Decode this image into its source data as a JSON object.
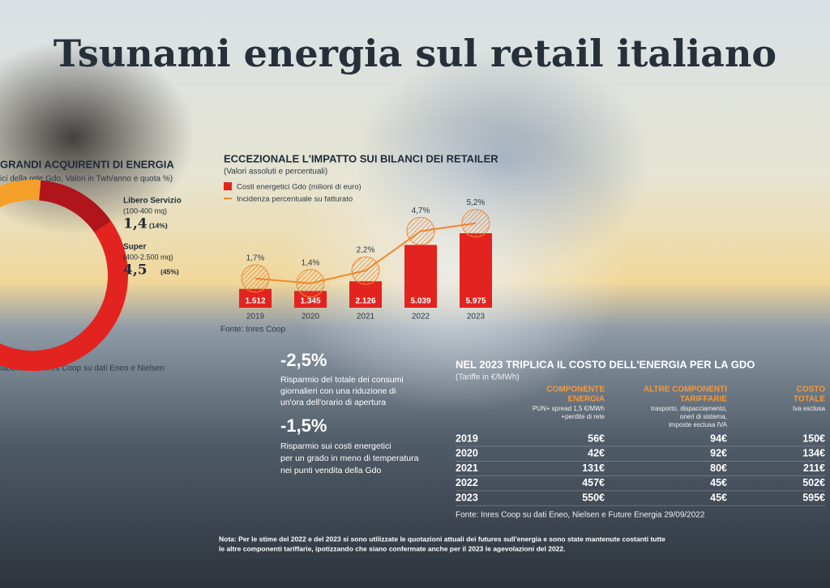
{
  "title": "Tsunami energia sul retail italiano",
  "chart_data": [
    {
      "type": "pie",
      "title": "GRANDI ACQUIRENTI DI ENERGIA",
      "subtitle": "ici della rete Gdo, Valori in Twh/anno e quota %)",
      "categories": [
        "Libero Servizio",
        "Super",
        null
      ],
      "sublabels": [
        "(100-400 mq)",
        "(400-2.500 mq)",
        null
      ],
      "twh": [
        1.4,
        4.5,
        null
      ],
      "twh_labels": [
        "1,4",
        "4,5",
        null
      ],
      "values": [
        14,
        45,
        41
      ],
      "value_labels": [
        "(14%)",
        "(45%)",
        null
      ],
      "colors": [
        "#b0151c",
        "#e3231f",
        "#f4a02a"
      ],
      "source": "laborazioni Inres Coop su dati Eneo e Nielsen"
    },
    {
      "type": "bar",
      "title": "ECCEZIONALE L'IMPATTO SUI BILANCI DEI RETAILER",
      "subtitle": "(Valori assoluti e percentuali)",
      "categories": [
        "2019",
        "2020",
        "2021",
        "2022",
        "2023"
      ],
      "series": [
        {
          "name": "Costi energetici Gdo (milioni di euro)",
          "color": "#e3231f",
          "values": [
            1512,
            1345,
            2126,
            5039,
            5975
          ],
          "value_labels": [
            "1.512",
            "1.345",
            "2.126",
            "5.039",
            "5.975"
          ]
        },
        {
          "name": "Incidenza percentuale su fatturato",
          "type": "line",
          "color": "#f0882e",
          "values": [
            1.7,
            1.4,
            2.2,
            4.7,
            5.2
          ],
          "value_labels": [
            "1,7%",
            "1,4%",
            "2,2%",
            "4,7%",
            "5,2%"
          ]
        }
      ],
      "source": "Fonte: Inres Coop"
    }
  ],
  "stats": [
    {
      "value": "-2,5%",
      "lines": [
        "Risparmio del totale dei consumi",
        "giornalieri con una riduzione di",
        "un'ora dell'orario di apertura"
      ]
    },
    {
      "value": "-1,5%",
      "lines": [
        "Risparmio sui costi energetici",
        "per un grado in meno di temperatura",
        "nei punti vendita della Gdo"
      ]
    }
  ],
  "table": {
    "title": "NEL 2023 TRIPLICA IL COSTO DELL'ENERGIA PER LA GDO",
    "subtitle": "(Tariffe in €/MWh)",
    "columns": [
      {
        "label": [
          "COMPONENTE",
          "ENERGIA"
        ],
        "note": [
          "PUN+ spread 1,5 €/MWh",
          "+perdite di rete"
        ]
      },
      {
        "label": [
          "ALTRE COMPONENTI",
          "TARIFFARIE"
        ],
        "note": [
          "trasporto, dispacciamento,",
          "oneri di sistema,",
          "imposte esclusa IVA"
        ]
      },
      {
        "label": [
          "COSTO",
          "TOTALE"
        ],
        "note": [
          "Iva esclusa"
        ]
      }
    ],
    "rows": [
      [
        "2019",
        "56€",
        "94€",
        "150€"
      ],
      [
        "2020",
        "42€",
        "92€",
        "134€"
      ],
      [
        "2021",
        "131€",
        "80€",
        "211€"
      ],
      [
        "2022",
        "457€",
        "45€",
        "502€"
      ],
      [
        "2023",
        "550€",
        "45€",
        "595€"
      ]
    ],
    "source": "Fonte: Inres Coop su dati Eneo, Nielsen e Future Energia 29/09/2022"
  },
  "note": [
    "Nota: Per le stime del 2022 e del 2023 si sono utilizzate le quotazioni attuali dei futures sull'energia e sono state mantenute costanti tutte",
    "le altre componenti tariffarie, ipotizzando che siano confermate anche per il 2023 le agevolazioni del 2022."
  ]
}
